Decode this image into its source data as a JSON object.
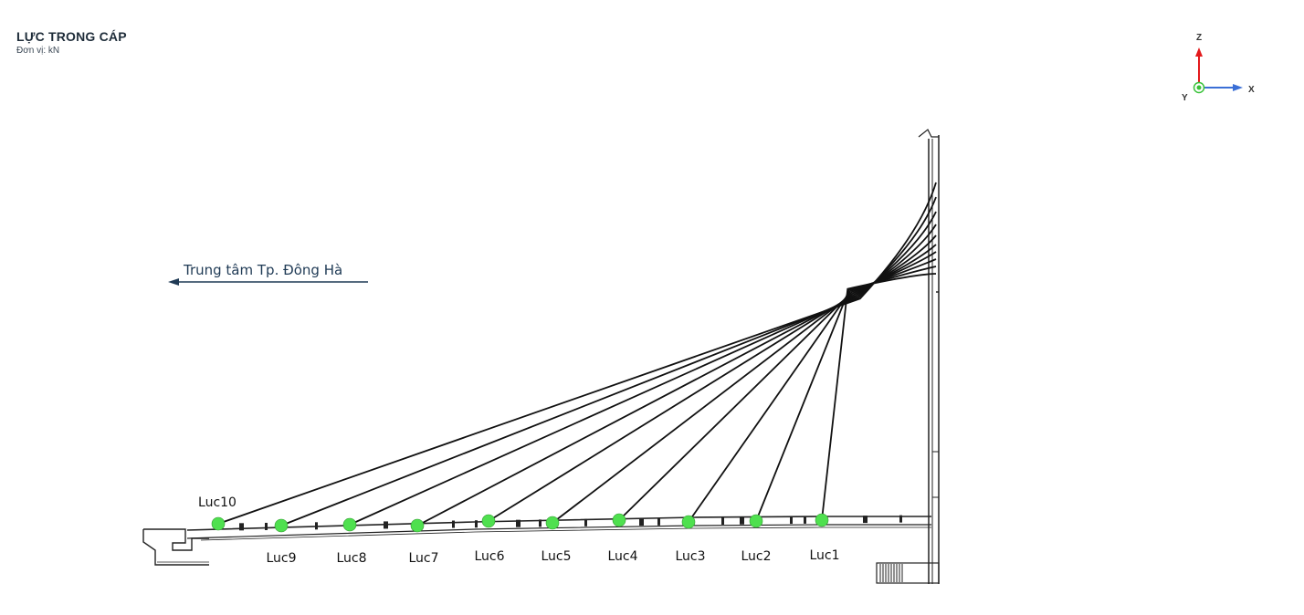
{
  "header": {
    "title": "LỰC TRONG CÁP",
    "unit": "Đơn vị: kN"
  },
  "axes_gizmo": {
    "z_label": "Z",
    "x_label": "X",
    "y_label": "Y",
    "z_color": "#e31a1c",
    "x_color": "#3b6fd6",
    "y_color": "#39c239"
  },
  "direction": {
    "text": "Trung tâm Tp. Đông Hà"
  },
  "colors": {
    "cable": "#111111",
    "anchor_point": "#4fe04f",
    "structure": "#222222"
  },
  "cables": [
    {
      "label": "Luc1"
    },
    {
      "label": "Luc2"
    },
    {
      "label": "Luc3"
    },
    {
      "label": "Luc4"
    },
    {
      "label": "Luc5"
    },
    {
      "label": "Luc6"
    },
    {
      "label": "Luc7"
    },
    {
      "label": "Luc8"
    },
    {
      "label": "Luc9"
    },
    {
      "label": "Luc10"
    }
  ]
}
